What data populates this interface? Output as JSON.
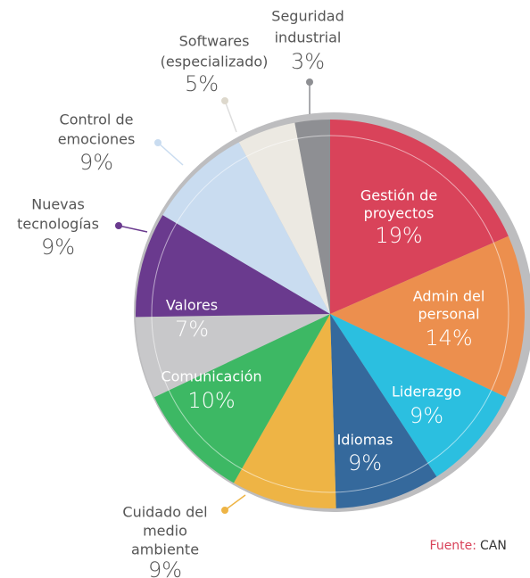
{
  "chart_data": {
    "type": "pie",
    "categories": [
      [
        "Gestión de",
        "proyectos"
      ],
      [
        "Admin del",
        "personal"
      ],
      [
        "Liderazgo"
      ],
      [
        "Idiomas"
      ],
      [
        "Cuidado del",
        "medio",
        "ambiente"
      ],
      [
        "Comunicación"
      ],
      [
        "Valores"
      ],
      [
        "Nuevas",
        "tecnologías"
      ],
      [
        "Control de",
        "emociones"
      ],
      [
        "Softwares",
        "(especializado)"
      ],
      [
        "Seguridad",
        "industrial"
      ]
    ],
    "values": [
      19,
      14,
      9,
      9,
      9,
      10,
      7,
      9,
      9,
      5,
      3
    ],
    "value_labels": [
      "19%",
      "14%",
      "9%",
      "9%",
      "9%",
      "10%",
      "7%",
      "9%",
      "9%",
      "5%",
      "3%"
    ],
    "colors": [
      "#d9435a",
      "#ec8f4e",
      "#2bbfe0",
      "#35699c",
      "#eeb445",
      "#3db864",
      "#c8c8ca",
      "#6a3a8e",
      "#c9dcf0",
      "#ece9e2",
      "#8e8f93"
    ],
    "source_label": "Fuente:",
    "source": "CAN"
  }
}
